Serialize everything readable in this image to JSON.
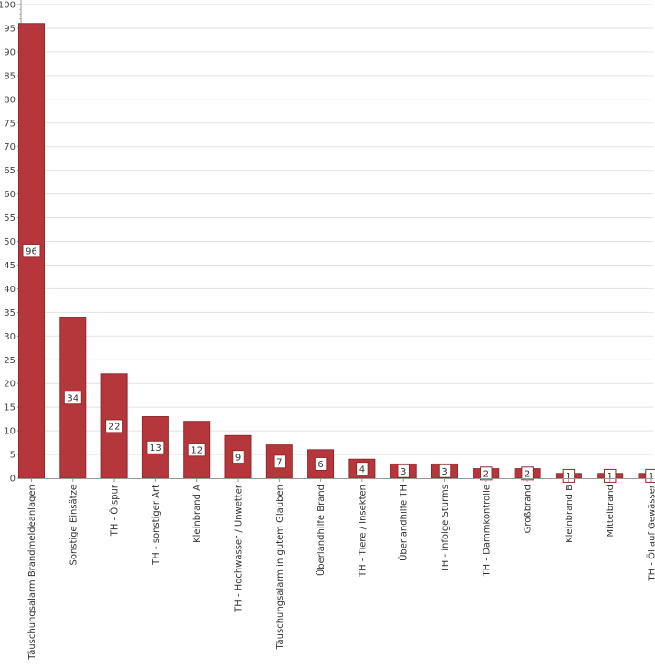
{
  "chart_data": {
    "type": "bar",
    "title": "",
    "xlabel": "",
    "ylabel": "",
    "ylim": [
      0,
      100
    ],
    "ytick_step": 5,
    "grid": true,
    "legend": "none",
    "bar_color": "#b5373b",
    "bar_border": "#8e2a2d",
    "grid_color": "#e2e2e2",
    "categories": [
      "Täuschungsalarm Brandmeldeanlagen",
      "Sonstige Einsätze",
      "TH - Ölspur",
      "TH - sonstiger Art",
      "Kleinbrand A",
      "TH - Hochwasser / Unwetter",
      "Täuschungsalarm in gutem Glauben",
      "Überlandhilfe Brand",
      "TH - Tiere / Insekten",
      "Überlandhilfe TH",
      "TH - infolge Sturms",
      "TH - Dammkontrolle",
      "Großbrand",
      "Kleinbrand B",
      "Mittelbrand",
      "TH - Öl auf Gewässer"
    ],
    "values": [
      96,
      34,
      22,
      13,
      12,
      9,
      7,
      6,
      4,
      3,
      3,
      2,
      2,
      1,
      1,
      1
    ]
  }
}
